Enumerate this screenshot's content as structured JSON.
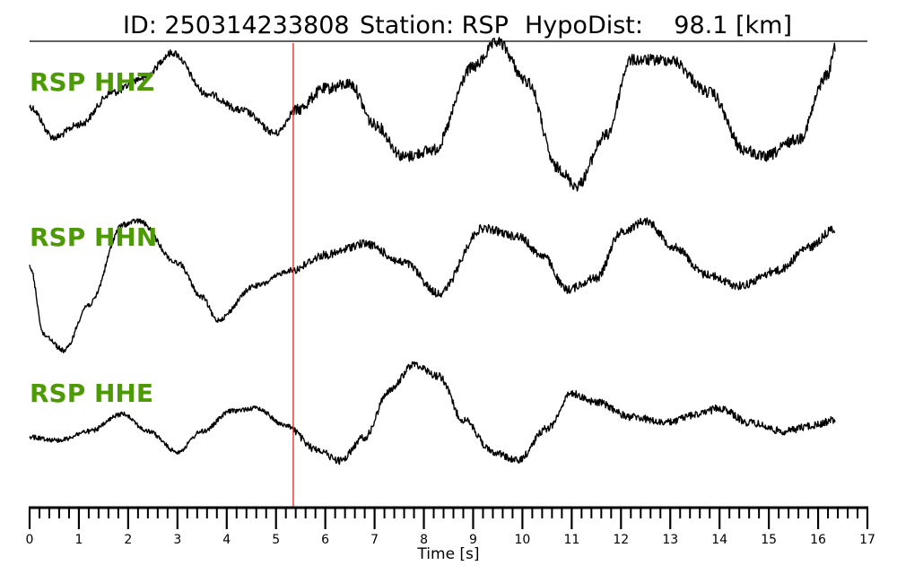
{
  "title": {
    "id": "ID: 250314233808",
    "station": "Station: RSP",
    "hypodist": "HypoDist:    98.1 [km]"
  },
  "colors": {
    "trace": "#000000",
    "label": "#4e9a06",
    "pick": "#e3211c"
  },
  "chart_data": {
    "type": "line",
    "xlabel": "Time [s]",
    "xlim": [
      0,
      17
    ],
    "xticks": [
      0,
      1,
      2,
      3,
      4,
      5,
      6,
      7,
      8,
      9,
      10,
      11,
      12,
      13,
      14,
      15,
      16,
      17
    ],
    "minor_tick_step": 0.2,
    "pick_time": 5.35,
    "ylim": [
      -1,
      1
    ],
    "series": [
      {
        "name": "RSP HHZ",
        "noise": 0.05,
        "points": [
          [
            0,
            0.1
          ],
          [
            0.5,
            -0.33
          ],
          [
            1.0,
            -0.15
          ],
          [
            1.7,
            0.3
          ],
          [
            2.3,
            0.5
          ],
          [
            2.9,
            0.85
          ],
          [
            3.6,
            0.28
          ],
          [
            4.3,
            0.05
          ],
          [
            5.0,
            -0.27
          ],
          [
            5.4,
            0.05
          ],
          [
            6.0,
            0.35
          ],
          [
            6.5,
            0.42
          ],
          [
            7.0,
            -0.15
          ],
          [
            7.6,
            -0.6
          ],
          [
            8.2,
            -0.5
          ],
          [
            9.0,
            0.65
          ],
          [
            9.5,
            1.0
          ],
          [
            10.1,
            0.45
          ],
          [
            10.7,
            -0.75
          ],
          [
            11.1,
            -1.0
          ],
          [
            11.7,
            -0.3
          ],
          [
            12.2,
            0.75
          ],
          [
            13.0,
            0.75
          ],
          [
            13.8,
            0.3
          ],
          [
            14.5,
            -0.5
          ],
          [
            14.9,
            -0.6
          ],
          [
            15.6,
            -0.35
          ],
          [
            16.2,
            0.55
          ],
          [
            16.35,
            0.95
          ]
        ]
      },
      {
        "name": "RSP HHN",
        "noise": 0.035,
        "points": [
          [
            0,
            0.15
          ],
          [
            0.3,
            -0.75
          ],
          [
            0.7,
            -0.95
          ],
          [
            1.2,
            -0.35
          ],
          [
            1.9,
            0.7
          ],
          [
            2.2,
            0.75
          ],
          [
            3.0,
            0.2
          ],
          [
            3.5,
            -0.25
          ],
          [
            3.8,
            -0.55
          ],
          [
            4.6,
            -0.1
          ],
          [
            5.3,
            0.1
          ],
          [
            6.0,
            0.3
          ],
          [
            6.8,
            0.45
          ],
          [
            7.6,
            0.2
          ],
          [
            8.3,
            -0.2
          ],
          [
            9.2,
            0.65
          ],
          [
            9.9,
            0.55
          ],
          [
            10.4,
            0.3
          ],
          [
            10.9,
            -0.15
          ],
          [
            11.5,
            0.0
          ],
          [
            12.0,
            0.6
          ],
          [
            12.5,
            0.75
          ],
          [
            13.1,
            0.4
          ],
          [
            13.7,
            0.05
          ],
          [
            14.4,
            -0.1
          ],
          [
            15.2,
            0.1
          ],
          [
            15.8,
            0.4
          ],
          [
            16.35,
            0.65
          ]
        ]
      },
      {
        "name": "RSP HHE",
        "noise": 0.04,
        "points": [
          [
            0,
            -0.5
          ],
          [
            0.6,
            -0.55
          ],
          [
            1.2,
            -0.4
          ],
          [
            1.9,
            -0.1
          ],
          [
            2.4,
            -0.4
          ],
          [
            3.0,
            -0.75
          ],
          [
            3.5,
            -0.4
          ],
          [
            4.1,
            -0.05
          ],
          [
            4.6,
            0.0
          ],
          [
            5.2,
            -0.3
          ],
          [
            5.8,
            -0.7
          ],
          [
            6.3,
            -0.9
          ],
          [
            6.8,
            -0.5
          ],
          [
            7.3,
            0.3
          ],
          [
            7.8,
            0.75
          ],
          [
            8.3,
            0.55
          ],
          [
            8.8,
            -0.2
          ],
          [
            9.4,
            -0.75
          ],
          [
            9.9,
            -0.9
          ],
          [
            10.5,
            -0.35
          ],
          [
            11.0,
            0.25
          ],
          [
            11.5,
            0.1
          ],
          [
            12.2,
            -0.15
          ],
          [
            12.9,
            -0.25
          ],
          [
            13.6,
            -0.1
          ],
          [
            14.0,
            0.0
          ],
          [
            14.6,
            -0.25
          ],
          [
            15.3,
            -0.4
          ],
          [
            15.9,
            -0.3
          ],
          [
            16.35,
            -0.2
          ]
        ]
      }
    ]
  }
}
